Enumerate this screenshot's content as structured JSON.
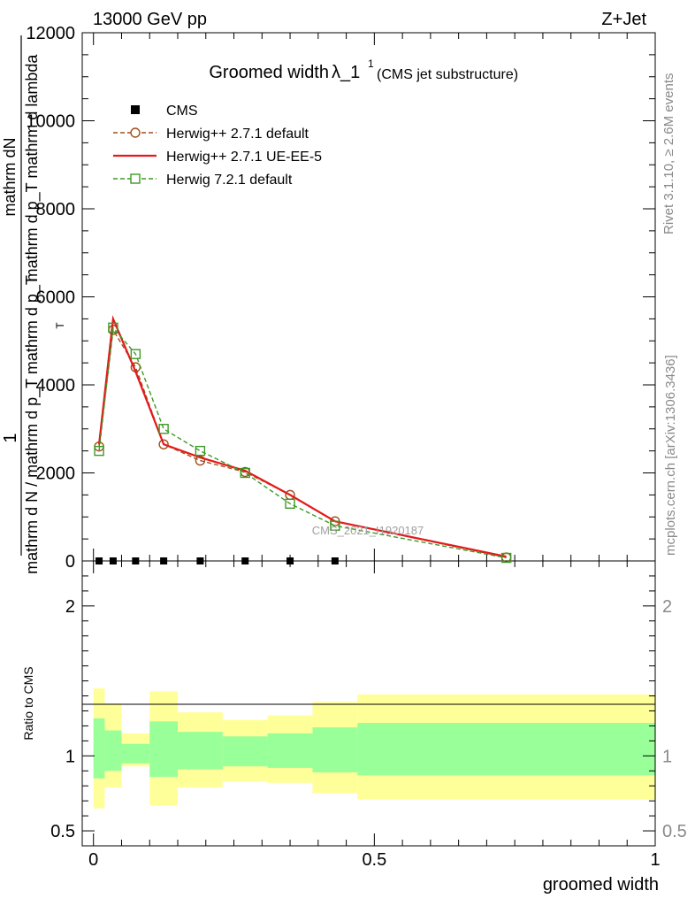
{
  "header": {
    "left": "13000 GeV pp",
    "right": "Z+Jet",
    "side_top": "Rivet 3.1.10, ≥ 2.6M events",
    "side_bottom": "mcplots.cern.ch [arXiv:1306.3436]"
  },
  "chart_data": [
    {
      "type": "line",
      "title_main": "Groomed width",
      "title_lambda": "λ_1",
      "title_sup": "1",
      "title_sub": "(CMS jet substructure)",
      "ylabel_numerator": "1",
      "ylabel_frac_top": "mathrm dN",
      "ylabel_frac_bottom": "mathrm d p_T mathrm d lambda",
      "ylabel_denominator": "mathrm d N / mathrm d p_T mathrm d p_T",
      "ylabel_sub": "T",
      "ylim": [
        0,
        12000
      ],
      "y_ticks": [
        "0",
        "2000",
        "4000",
        "6000",
        "8000",
        "10000",
        "12000"
      ],
      "xlim": [
        -0.02,
        1.0
      ],
      "watermark": "CMS_2021_I1920187",
      "legend_position": "top-left",
      "legend": [
        {
          "label": "CMS",
          "color": "#000000",
          "marker": "square-filled"
        },
        {
          "label": "Herwig++ 2.7.1 default",
          "color": "#a0501c",
          "marker": "circle",
          "dash": true
        },
        {
          "label": "Herwig++ 2.7.1 UE-EE-5",
          "color": "#e41a1c",
          "marker": "none",
          "dash": false
        },
        {
          "label": "Herwig 7.2.1 default",
          "color": "#3d9a26",
          "marker": "square",
          "dash": true
        }
      ],
      "cms_points": {
        "x": [
          0.01,
          0.035,
          0.075,
          0.125,
          0.19,
          0.27,
          0.35,
          0.43
        ],
        "y": [
          0,
          0,
          0,
          0,
          0,
          0,
          0,
          0
        ]
      },
      "series": [
        {
          "name": "Herwig++ 2.7.1 default",
          "x": [
            0.01,
            0.035,
            0.075,
            0.125,
            0.19,
            0.27,
            0.35,
            0.43,
            0.735
          ],
          "y": [
            2600,
            5250,
            4400,
            2650,
            2280,
            2020,
            1500,
            900,
            80
          ]
        },
        {
          "name": "Herwig++ 2.7.1 UE-EE-5",
          "x": [
            0.01,
            0.035,
            0.075,
            0.125,
            0.19,
            0.27,
            0.35,
            0.43,
            0.735
          ],
          "y": [
            2650,
            5500,
            4300,
            2650,
            2350,
            2050,
            1500,
            900,
            100
          ]
        },
        {
          "name": "Herwig 7.2.1 default",
          "x": [
            0.01,
            0.035,
            0.075,
            0.125,
            0.19,
            0.27,
            0.35,
            0.43,
            0.735
          ],
          "y": [
            2500,
            5300,
            4700,
            3000,
            2500,
            2000,
            1300,
            800,
            70
          ]
        }
      ]
    },
    {
      "type": "area",
      "ylabel": "Ratio to CMS",
      "xlabel": "groomed width",
      "ylim": [
        0.4,
        2.3
      ],
      "y_ticks": [
        "0.5",
        "1",
        "2"
      ],
      "x_ticks": [
        "0",
        "0.5",
        "1"
      ],
      "bins": [
        {
          "lo": 0.0,
          "hi": 0.02,
          "in_lo": 0.85,
          "in_hi": 1.25,
          "out_lo": 0.65,
          "out_hi": 1.45
        },
        {
          "lo": 0.02,
          "hi": 0.05,
          "in_lo": 0.9,
          "in_hi": 1.17,
          "out_lo": 0.79,
          "out_hi": 1.35
        },
        {
          "lo": 0.05,
          "hi": 0.1,
          "in_lo": 0.95,
          "in_hi": 1.08,
          "out_lo": 0.93,
          "out_hi": 1.15
        },
        {
          "lo": 0.1,
          "hi": 0.15,
          "in_lo": 0.86,
          "in_hi": 1.23,
          "out_lo": 0.67,
          "out_hi": 1.43
        },
        {
          "lo": 0.15,
          "hi": 0.23,
          "in_lo": 0.91,
          "in_hi": 1.16,
          "out_lo": 0.79,
          "out_hi": 1.29
        },
        {
          "lo": 0.23,
          "hi": 0.31,
          "in_lo": 0.93,
          "in_hi": 1.13,
          "out_lo": 0.83,
          "out_hi": 1.24
        },
        {
          "lo": 0.31,
          "hi": 0.39,
          "in_lo": 0.92,
          "in_hi": 1.15,
          "out_lo": 0.82,
          "out_hi": 1.27
        },
        {
          "lo": 0.39,
          "hi": 0.47,
          "in_lo": 0.89,
          "in_hi": 1.19,
          "out_lo": 0.75,
          "out_hi": 1.36
        },
        {
          "lo": 0.47,
          "hi": 1.0,
          "in_lo": 0.87,
          "in_hi": 1.22,
          "out_lo": 0.71,
          "out_hi": 1.41
        }
      ],
      "colors": {
        "inner": "#99ff99",
        "outer": "#ffff99",
        "reference": "#000000"
      }
    }
  ]
}
